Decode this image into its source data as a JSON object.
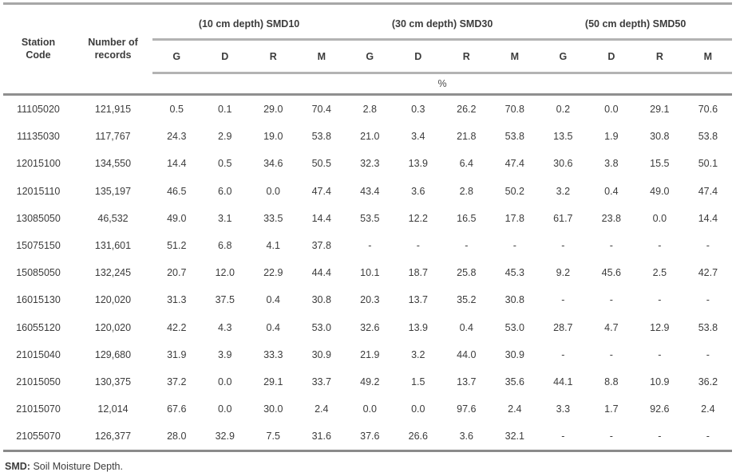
{
  "table": {
    "header": {
      "station_label": "Station Code",
      "records_label": "Number of records",
      "groups": [
        "(10 cm depth) SMD10",
        "(30 cm depth) SMD30",
        "(50 cm depth) SMD50"
      ],
      "subcolumns": [
        "G",
        "D",
        "R",
        "M"
      ],
      "unit_label": "%"
    },
    "rows": [
      [
        "11105020",
        "121,915",
        "0.5",
        "0.1",
        "29.0",
        "70.4",
        "2.8",
        "0.3",
        "26.2",
        "70.8",
        "0.2",
        "0.0",
        "29.1",
        "70.6"
      ],
      [
        "11135030",
        "117,767",
        "24.3",
        "2.9",
        "19.0",
        "53.8",
        "21.0",
        "3.4",
        "21.8",
        "53.8",
        "13.5",
        "1.9",
        "30.8",
        "53.8"
      ],
      [
        "12015100",
        "134,550",
        "14.4",
        "0.5",
        "34.6",
        "50.5",
        "32.3",
        "13.9",
        "6.4",
        "47.4",
        "30.6",
        "3.8",
        "15.5",
        "50.1"
      ],
      [
        "12015110",
        "135,197",
        "46.5",
        "6.0",
        "0.0",
        "47.4",
        "43.4",
        "3.6",
        "2.8",
        "50.2",
        "3.2",
        "0.4",
        "49.0",
        "47.4"
      ],
      [
        "13085050",
        "46,532",
        "49.0",
        "3.1",
        "33.5",
        "14.4",
        "53.5",
        "12.2",
        "16.5",
        "17.8",
        "61.7",
        "23.8",
        "0.0",
        "14.4"
      ],
      [
        "15075150",
        "131,601",
        "51.2",
        "6.8",
        "4.1",
        "37.8",
        "-",
        "-",
        "-",
        "-",
        "-",
        "-",
        "-",
        "-"
      ],
      [
        "15085050",
        "132,245",
        "20.7",
        "12.0",
        "22.9",
        "44.4",
        "10.1",
        "18.7",
        "25.8",
        "45.3",
        "9.2",
        "45.6",
        "2.5",
        "42.7"
      ],
      [
        "16015130",
        "120,020",
        "31.3",
        "37.5",
        "0.4",
        "30.8",
        "20.3",
        "13.7",
        "35.2",
        "30.8",
        "-",
        "-",
        "-",
        "-"
      ],
      [
        "16055120",
        "120,020",
        "42.2",
        "4.3",
        "0.4",
        "53.0",
        "32.6",
        "13.9",
        "0.4",
        "53.0",
        "28.7",
        "4.7",
        "12.9",
        "53.8"
      ],
      [
        "21015040",
        "129,680",
        "31.9",
        "3.9",
        "33.3",
        "30.9",
        "21.9",
        "3.2",
        "44.0",
        "30.9",
        "-",
        "-",
        "-",
        "-"
      ],
      [
        "21015050",
        "130,375",
        "37.2",
        "0.0",
        "29.1",
        "33.7",
        "49.2",
        "1.5",
        "13.7",
        "35.6",
        "44.1",
        "8.8",
        "10.9",
        "36.2"
      ],
      [
        "21015070",
        "12,014",
        "67.6",
        "0.0",
        "30.0",
        "2.4",
        "0.0",
        "0.0",
        "97.6",
        "2.4",
        "3.3",
        "1.7",
        "92.6",
        "2.4"
      ],
      [
        "21055070",
        "126,377",
        "28.0",
        "32.9",
        "7.5",
        "31.6",
        "37.6",
        "26.6",
        "3.6",
        "32.1",
        "-",
        "-",
        "-",
        "-"
      ]
    ],
    "colors": {
      "rule_light": "#b3b3b3",
      "rule_dark": "#8f8f8f",
      "text": "#3c3c3c"
    }
  },
  "footnote": {
    "abbr": "SMD:",
    "definition": "Soil Moisture Depth."
  }
}
